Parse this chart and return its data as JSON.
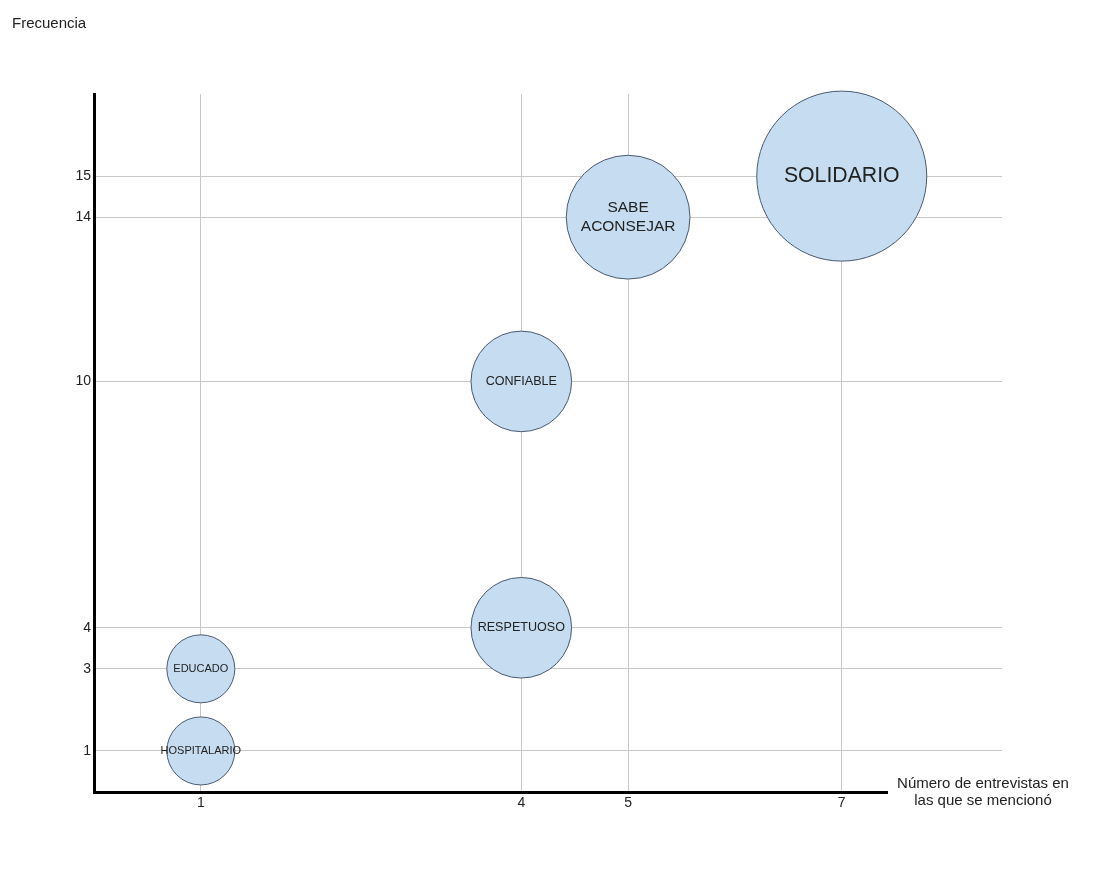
{
  "chart_data": {
    "type": "bubble",
    "xlabel": "Número de entrevistas en las que se mencionó",
    "ylabel": "Frecuencia",
    "x": [
      1,
      1,
      4,
      4,
      5,
      7
    ],
    "series": [
      {
        "color": "#c6dcf0",
        "values": [
          1,
          3,
          4,
          10,
          14,
          15
        ],
        "sizes": [
          0.16,
          0.16,
          0.35,
          0.35,
          0.53,
          1
        ]
      }
    ],
    "annotations": [
      {
        "text": "HOSPITALARIO",
        "x": 1,
        "y": 1
      },
      {
        "text": "EDUCADO",
        "x": 1,
        "y": 3
      },
      {
        "text": "RESPETUOSO",
        "x": 4,
        "y": 4
      },
      {
        "text": "CONFIABLE",
        "x": 4,
        "y": 10
      },
      {
        "text": "SABE ACONSEJAR",
        "x": 5,
        "y": 14
      },
      {
        "text": "SOLIDARIO",
        "x": 7,
        "y": 15
      }
    ],
    "xlim": [
      0,
      8.5
    ],
    "xticks": [
      1,
      4,
      5,
      7
    ],
    "ylim": [
      0,
      17
    ],
    "yticks": [
      1,
      3,
      4,
      10,
      14,
      15
    ],
    "grid": true,
    "legend": false
  }
}
